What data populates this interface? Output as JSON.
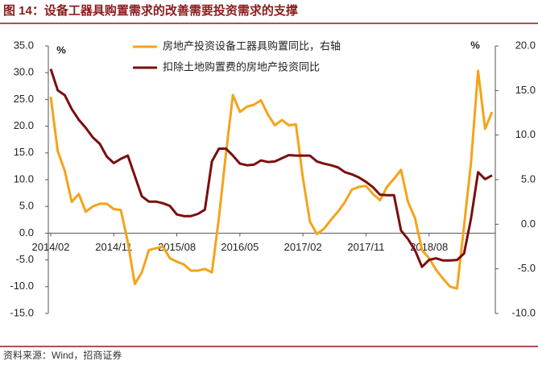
{
  "chart_data": {
    "type": "line",
    "title": "图 14：设备工器具购置需求的改善需要投资需求的支撑",
    "source": "资料来源：Wind，招商证券",
    "ylabel": "%",
    "y2label": "%",
    "categories": [
      "2014/02",
      null,
      null,
      null,
      null,
      null,
      null,
      null,
      null,
      "2014/11",
      null,
      null,
      null,
      null,
      null,
      null,
      null,
      null,
      "2015/08",
      null,
      null,
      null,
      null,
      null,
      null,
      null,
      null,
      "2016/05",
      null,
      null,
      null,
      null,
      null,
      null,
      null,
      null,
      "2017/02",
      null,
      null,
      null,
      null,
      null,
      null,
      null,
      null,
      "2017/11",
      null,
      null,
      null,
      null,
      null,
      null,
      null,
      null,
      "2018/08",
      null,
      null,
      null,
      null,
      null,
      null,
      null,
      null,
      null
    ],
    "ylim": [
      -15,
      35
    ],
    "yticks": [
      {
        "value": 35,
        "label": "35.0"
      },
      {
        "value": 30,
        "label": "30.0"
      },
      {
        "value": 25,
        "label": "25.0"
      },
      {
        "value": 20,
        "label": "20.0"
      },
      {
        "value": 15,
        "label": "15.0"
      },
      {
        "value": 10,
        "label": "10.0"
      },
      {
        "value": 5,
        "label": "5.0"
      },
      {
        "value": 0,
        "label": "0.0"
      },
      {
        "value": -5,
        "label": "-5.0"
      },
      {
        "value": -10,
        "label": "-10.0"
      },
      {
        "value": -15,
        "label": "-15.0"
      }
    ],
    "y2lim": [
      -10,
      20
    ],
    "y2ticks": [
      {
        "value": 20,
        "label": "20.0"
      },
      {
        "value": 15,
        "label": "15.0"
      },
      {
        "value": 10,
        "label": "10.0"
      },
      {
        "value": 5,
        "label": "5.0"
      },
      {
        "value": 0,
        "label": "0.0"
      },
      {
        "value": -5,
        "label": "-5.0"
      },
      {
        "value": -10,
        "label": "-10.0"
      }
    ],
    "series": [
      {
        "name": "房地产投资设备工器具购置同比，右轴",
        "color": "#f5a31a",
        "axis": "y2",
        "values": [
          14.3,
          8.2,
          6.0,
          2.5,
          3.4,
          1.4,
          2.0,
          2.3,
          2.3,
          1.7,
          1.6,
          -2.0,
          -6.7,
          -5.4,
          -2.9,
          -2.7,
          -2.5,
          -3.8,
          -4.2,
          -4.5,
          -5.2,
          -5.2,
          -5.0,
          -5.4,
          0.7,
          7.9,
          14.5,
          12.6,
          13.2,
          13.4,
          13.9,
          12.3,
          11.1,
          11.7,
          11.1,
          11.2,
          5.2,
          0.3,
          -1.1,
          -0.5,
          0.5,
          1.4,
          2.5,
          3.9,
          4.2,
          4.3,
          3.4,
          2.7,
          4.2,
          5.1,
          6.1,
          2.5,
          0.7,
          -2.9,
          -3.8,
          -5.1,
          -6.1,
          -7.0,
          -7.2,
          -0.2,
          7.0,
          17.2,
          10.7,
          12.6
        ]
      },
      {
        "name": "扣除土地购置费的房地产投资同比",
        "color": "#7a0e0e",
        "values": [
          30.7,
          26.7,
          25.8,
          23.2,
          21.2,
          19.7,
          17.9,
          16.7,
          14.3,
          13.1,
          13.9,
          14.5,
          10.7,
          6.9,
          5.9,
          5.9,
          5.6,
          5.1,
          3.5,
          3.2,
          3.2,
          3.6,
          4.4,
          13.4,
          15.8,
          15.8,
          14.5,
          13.0,
          12.7,
          12.8,
          13.6,
          13.3,
          13.4,
          14.0,
          14.6,
          14.5,
          14.5,
          14.5,
          13.4,
          13.0,
          12.7,
          12.3,
          11.4,
          11.0,
          10.4,
          9.6,
          8.6,
          7.2,
          7.1,
          7.1,
          0.5,
          -1.1,
          -3.2,
          -6.3,
          -5.0,
          -4.7,
          -5.1,
          -5.1,
          -5.0,
          -3.8,
          2.8,
          11.4,
          10.1,
          10.8
        ]
      }
    ]
  }
}
